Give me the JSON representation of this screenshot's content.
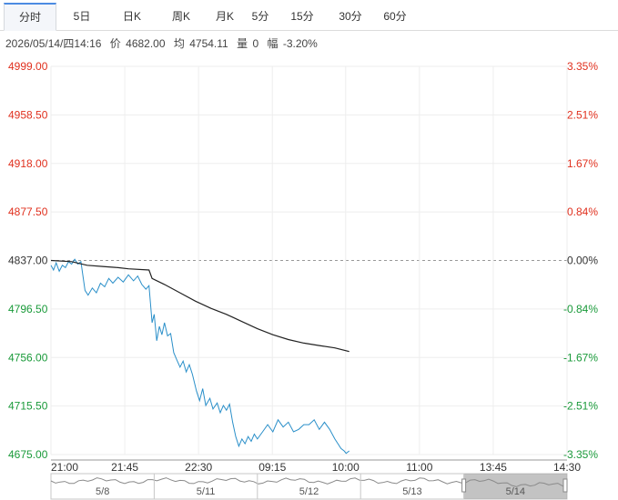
{
  "tabs": [
    {
      "label": "分时",
      "active": true
    },
    {
      "label": "5日",
      "active": false
    },
    {
      "label": "日K",
      "active": false
    },
    {
      "label": "周K",
      "active": false
    },
    {
      "label": "月K",
      "active": false
    },
    {
      "label": "5分",
      "active": false
    },
    {
      "label": "15分",
      "active": false
    },
    {
      "label": "30分",
      "active": false
    },
    {
      "label": "60分",
      "active": false
    }
  ],
  "info": {
    "datetime": "2026/05/14/四14:16",
    "price_label": "价",
    "price": "4682.00",
    "avg_label": "均",
    "avg": "4754.11",
    "vol_label": "量",
    "vol": "0",
    "change_label": "幅",
    "change": "-3.20%"
  },
  "colors": {
    "up": "#e0301e",
    "down": "#1a9a3a",
    "neutral": "#333333",
    "price_line": "#2a8fc9",
    "avg_line": "#222222",
    "grid": "#eeeeee",
    "tab_accent": "#4c8be2"
  },
  "chart_data": {
    "type": "line",
    "title": "",
    "xlabel": "",
    "ylabel": "",
    "ylim": [
      4675.0,
      4999.0
    ],
    "base": 4837.0,
    "left_ticks": [
      "4999.00",
      "4958.50",
      "4918.00",
      "4877.50",
      "4837.00",
      "4796.50",
      "4756.00",
      "4715.50",
      "4675.00"
    ],
    "right_ticks": [
      "3.35%",
      "2.51%",
      "1.67%",
      "0.84%",
      "0.00%",
      "-0.84%",
      "-1.67%",
      "-2.51%",
      "-3.35%"
    ],
    "x_ticks": [
      "21:00",
      "21:45",
      "22:30",
      "09:15",
      "10:00",
      "11:00",
      "13:45",
      "14:30"
    ],
    "x_tick_positions": [
      0,
      0.143,
      0.286,
      0.429,
      0.571,
      0.714,
      0.857,
      1.0
    ],
    "grid": true,
    "series": [
      {
        "name": "",
        "role": "price",
        "points": [
          [
            0.0,
            4833
          ],
          [
            0.005,
            4829
          ],
          [
            0.01,
            4835
          ],
          [
            0.016,
            4828
          ],
          [
            0.022,
            4833
          ],
          [
            0.028,
            4831
          ],
          [
            0.034,
            4836
          ],
          [
            0.04,
            4834
          ],
          [
            0.046,
            4838
          ],
          [
            0.052,
            4834
          ],
          [
            0.058,
            4836
          ],
          [
            0.066,
            4812
          ],
          [
            0.072,
            4808
          ],
          [
            0.08,
            4814
          ],
          [
            0.088,
            4810
          ],
          [
            0.096,
            4818
          ],
          [
            0.104,
            4815
          ],
          [
            0.112,
            4822
          ],
          [
            0.12,
            4818
          ],
          [
            0.13,
            4823
          ],
          [
            0.14,
            4819
          ],
          [
            0.15,
            4825
          ],
          [
            0.16,
            4820
          ],
          [
            0.168,
            4824
          ],
          [
            0.176,
            4817
          ],
          [
            0.184,
            4813
          ],
          [
            0.19,
            4816
          ],
          [
            0.196,
            4785
          ],
          [
            0.2,
            4792
          ],
          [
            0.205,
            4770
          ],
          [
            0.21,
            4782
          ],
          [
            0.215,
            4775
          ],
          [
            0.22,
            4785
          ],
          [
            0.226,
            4774
          ],
          [
            0.232,
            4776
          ],
          [
            0.238,
            4760
          ],
          [
            0.244,
            4754
          ],
          [
            0.25,
            4748
          ],
          [
            0.256,
            4753
          ],
          [
            0.262,
            4744
          ],
          [
            0.268,
            4750
          ],
          [
            0.274,
            4742
          ],
          [
            0.282,
            4728
          ],
          [
            0.288,
            4720
          ],
          [
            0.294,
            4730
          ],
          [
            0.3,
            4716
          ],
          [
            0.308,
            4722
          ],
          [
            0.314,
            4713
          ],
          [
            0.322,
            4718
          ],
          [
            0.328,
            4710
          ],
          [
            0.334,
            4716
          ],
          [
            0.34,
            4712
          ],
          [
            0.346,
            4717
          ],
          [
            0.352,
            4702
          ],
          [
            0.358,
            4690
          ],
          [
            0.364,
            4682
          ],
          [
            0.37,
            4688
          ],
          [
            0.376,
            4684
          ],
          [
            0.382,
            4690
          ],
          [
            0.388,
            4686
          ],
          [
            0.394,
            4692
          ],
          [
            0.4,
            4688
          ],
          [
            0.41,
            4694
          ],
          [
            0.42,
            4700
          ],
          [
            0.43,
            4694
          ],
          [
            0.44,
            4704
          ],
          [
            0.45,
            4698
          ],
          [
            0.46,
            4702
          ],
          [
            0.47,
            4694
          ],
          [
            0.48,
            4696
          ],
          [
            0.49,
            4700
          ],
          [
            0.5,
            4700
          ],
          [
            0.51,
            4704
          ],
          [
            0.52,
            4696
          ],
          [
            0.53,
            4702
          ],
          [
            0.54,
            4696
          ],
          [
            0.55,
            4688
          ],
          [
            0.556,
            4684
          ],
          [
            0.562,
            4680
          ],
          [
            0.568,
            4678
          ],
          [
            0.572,
            4676
          ],
          [
            0.578,
            4678
          ]
        ]
      },
      {
        "name": "",
        "role": "average",
        "points": [
          [
            0.0,
            4837
          ],
          [
            0.04,
            4836
          ],
          [
            0.07,
            4833
          ],
          [
            0.1,
            4832
          ],
          [
            0.13,
            4831
          ],
          [
            0.15,
            4830
          ],
          [
            0.19,
            4829
          ],
          [
            0.196,
            4822
          ],
          [
            0.22,
            4817
          ],
          [
            0.25,
            4810
          ],
          [
            0.28,
            4803
          ],
          [
            0.31,
            4797
          ],
          [
            0.34,
            4792
          ],
          [
            0.37,
            4786
          ],
          [
            0.4,
            4780
          ],
          [
            0.43,
            4775
          ],
          [
            0.46,
            4771
          ],
          [
            0.49,
            4768
          ],
          [
            0.52,
            4766
          ],
          [
            0.55,
            4764
          ],
          [
            0.578,
            4761
          ]
        ]
      }
    ],
    "navigator": {
      "labels": [
        "5/8",
        "5/11",
        "5/12",
        "5/13",
        "5/14"
      ],
      "selected": "5/14"
    }
  }
}
